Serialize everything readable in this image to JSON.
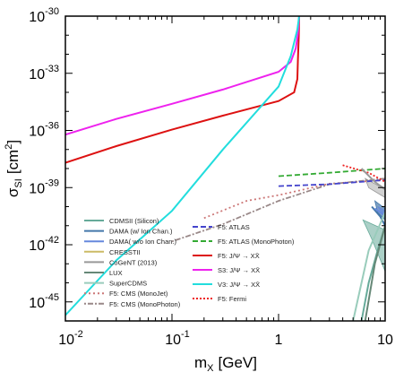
{
  "chart_data": {
    "type": "line",
    "title": "",
    "xlabel": "m",
    "xlabel_sub": "X",
    "xlabel_unit": "[GeV]",
    "ylabel": "σ",
    "ylabel_sub": "SI",
    "ylabel_unit": "[cm",
    "ylabel_unit_sup": "2",
    "ylabel_unit_close": "]",
    "x_scale": "log",
    "y_scale": "log",
    "xlim": [
      0.01,
      10
    ],
    "ylim": [
      1e-46,
      1e-30
    ],
    "grid": false,
    "legend_placement": "bottom-left",
    "x_ticks": [
      {
        "value": 0.01,
        "base": "10",
        "exp": "-2"
      },
      {
        "value": 0.1,
        "base": "10",
        "exp": "-1"
      },
      {
        "value": 1,
        "base": "1",
        "exp": ""
      },
      {
        "value": 10,
        "base": "10",
        "exp": ""
      }
    ],
    "y_ticks": [
      {
        "value": 1e-30,
        "base": "10",
        "exp": "-30"
      },
      {
        "value": 1e-33,
        "base": "10",
        "exp": "-33"
      },
      {
        "value": 1e-36,
        "base": "10",
        "exp": "-36"
      },
      {
        "value": 1e-39,
        "base": "10",
        "exp": "-39"
      },
      {
        "value": 1e-42,
        "base": "10",
        "exp": "-42"
      },
      {
        "value": 1e-45,
        "base": "10",
        "exp": "-45"
      }
    ],
    "series": [
      {
        "name": "F5: J/Ψ → XX̄",
        "color": "#dd1111",
        "dash": "solid",
        "x": [
          0.01,
          0.03,
          0.1,
          0.3,
          1.0,
          1.4,
          1.5,
          1.52,
          1.55,
          1.56
        ],
        "y": [
          2e-38,
          1.5e-37,
          1.1e-36,
          6e-36,
          3.5e-35,
          1e-34,
          5e-34,
          5e-33,
          1e-31,
          1e-30
        ]
      },
      {
        "name": "S3: J/Ψ → XX̄",
        "color": "#ee22ee",
        "dash": "solid",
        "x": [
          0.01,
          0.03,
          0.1,
          0.3,
          1.0,
          1.3,
          1.45,
          1.52,
          1.56
        ],
        "y": [
          6e-37,
          4e-36,
          2.5e-35,
          1.4e-34,
          1.2e-33,
          4e-33,
          2e-32,
          1.2e-31,
          1e-30
        ]
      },
      {
        "name": "V3: J/Ψ → XX̄",
        "color": "#22dddd",
        "dash": "solid",
        "x": [
          0.01,
          0.03,
          0.1,
          0.3,
          1.0,
          1.3,
          1.5,
          1.56
        ],
        "y": [
          2e-46,
          1.5e-43,
          6e-41,
          1e-37,
          2e-34,
          8e-33,
          2e-31,
          1e-30
        ]
      },
      {
        "name": "F5: CMS (MonoJet)",
        "color": "#cc7777",
        "dash": "2,3",
        "x": [
          0.2,
          0.5,
          1.0,
          3.0,
          10.0
        ],
        "y": [
          2.5e-41,
          2e-40,
          4e-40,
          1.6e-39,
          2.5e-39
        ]
      },
      {
        "name": "F5: CMS (MonoPhoton)",
        "color": "#998888",
        "dash": "2,2,6,2",
        "x": [
          0.1,
          0.3,
          1.0,
          3.0,
          10.0
        ],
        "y": [
          1.5e-42,
          1.2e-41,
          2e-40,
          1.5e-39,
          3e-39
        ]
      },
      {
        "name": "F5: ATLAS",
        "color": "#4444cc",
        "dash": "6,3",
        "x": [
          1.0,
          3.0,
          10.0
        ],
        "y": [
          1.2e-39,
          1.5e-39,
          2.5e-39
        ]
      },
      {
        "name": "F5: ATLAS (MonoPhoton)",
        "color": "#33aa33",
        "dash": "6,3",
        "x": [
          1.0,
          3.0,
          10.0
        ],
        "y": [
          4e-39,
          6e-39,
          1e-38
        ]
      },
      {
        "name": "F5: Fermi",
        "color": "#ee2222",
        "dash": "2,2",
        "x": [
          4.0,
          7.0,
          10.0
        ],
        "y": [
          1.5e-38,
          6e-39,
          2e-39
        ]
      },
      {
        "name": "CDMSII (Silicon)",
        "color": "#66aa99",
        "dash": "solid",
        "x": [
          6.0,
          7.0,
          8.5,
          10.0
        ],
        "y": [
          1e-46,
          1e-44,
          5e-43,
          1e-41
        ]
      },
      {
        "name": "DAMA (w/ Ion Chan.)",
        "color": "#4477aa",
        "dash": "solid",
        "x": [
          7.5,
          9.0,
          10.0
        ],
        "y": [
          1e-40,
          3e-41,
          1e-41
        ]
      },
      {
        "name": "DAMA (w/o Ion Chan.)",
        "color": "#6688dd",
        "dash": "solid",
        "x": [
          8.0,
          9.5,
          10.0
        ],
        "y": [
          8e-41,
          4e-41,
          3e-41
        ]
      },
      {
        "name": "CRESSTII",
        "color": "#ccbb66",
        "dash": "solid",
        "x": [],
        "y": []
      },
      {
        "name": "CoGeNT (2013)",
        "color": "#999999",
        "dash": "solid",
        "x": [
          6.0,
          8.0,
          10.0
        ],
        "y": [
          1e-38,
          2e-39,
          8e-40
        ]
      },
      {
        "name": "LUX",
        "color": "#668877",
        "dash": "solid",
        "x": [
          6.5,
          8.0,
          10.0
        ],
        "y": [
          1e-46,
          1e-43,
          1e-41
        ]
      },
      {
        "name": "SuperCDMS",
        "color": "#99ccbb",
        "dash": "solid",
        "x": [
          5.0,
          7.0,
          10.0
        ],
        "y": [
          1e-46,
          5e-43,
          5e-41
        ]
      }
    ],
    "legend_left": [
      {
        "label": "CDMSII (Silicon)",
        "color": "#66aa99",
        "dash": "solid"
      },
      {
        "label": "DAMA (w/ Ion Chan.)",
        "color": "#4477aa",
        "dash": "solid"
      },
      {
        "label": "DAMA( w/o Ion Chan.)",
        "color": "#6688dd",
        "dash": "solid"
      },
      {
        "label": "CRESSTII",
        "color": "#ccbb66",
        "dash": "solid"
      },
      {
        "label": "CoGeNT (2013)",
        "color": "#999999",
        "dash": "solid"
      },
      {
        "label": "LUX",
        "color": "#668877",
        "dash": "solid"
      },
      {
        "label": "SuperCDMS",
        "color": "#99ccbb",
        "dash": "solid"
      },
      {
        "label": "F5: CMS (MonoJet)",
        "color": "#cc7777",
        "dash": "2,3"
      },
      {
        "label": "F5: CMS (MonoPhoton)",
        "color": "#998888",
        "dash": "2,2,6,2"
      }
    ],
    "legend_right": [
      {
        "label": "F5: ATLAS",
        "color": "#4444cc",
        "dash": "6,3"
      },
      {
        "label": "F5: ATLAS (MonoPhoton)",
        "color": "#33aa33",
        "dash": "6,3"
      },
      {
        "label": "F5: J/Ψ → XX̄",
        "color": "#dd1111",
        "dash": "solid"
      },
      {
        "label": "S3: J/Ψ → XX̄",
        "color": "#ee22ee",
        "dash": "solid"
      },
      {
        "label": "V3: J/Ψ → XX̄",
        "color": "#22dddd",
        "dash": "solid"
      },
      {
        "label": "F5: Fermi",
        "color": "#ee2222",
        "dash": "2,2"
      }
    ]
  }
}
